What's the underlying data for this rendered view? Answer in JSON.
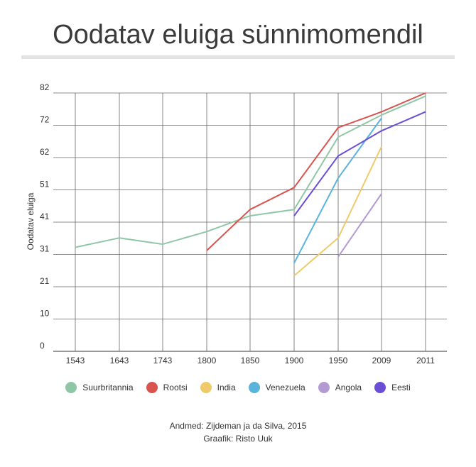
{
  "title": "Oodatav eluiga sünnimomendil",
  "credits": {
    "source": "Andmed: Zijdeman ja da Silva, 2015",
    "author": "Graafik: Risto Uuk"
  },
  "chart_data": {
    "type": "line",
    "title": "Oodatav eluiga sünnimomendil",
    "xlabel": "",
    "ylabel": "Oodatav eluiga",
    "categories": [
      "1543",
      "1643",
      "1743",
      "1800",
      "1850",
      "1900",
      "1950",
      "2009",
      "2011"
    ],
    "y_ticks": [
      "0",
      "10",
      "21",
      "31",
      "41",
      "51",
      "62",
      "72",
      "82"
    ],
    "ylim": [
      0,
      82
    ],
    "grid": true,
    "legend": "bottom",
    "series": [
      {
        "name": "Suurbritannia",
        "color": "#8fc7a6",
        "values": [
          33,
          36,
          34,
          38,
          43,
          45,
          68,
          75,
          81
        ]
      },
      {
        "name": "Rootsi",
        "color": "#d9534f",
        "values": [
          null,
          null,
          null,
          32,
          45,
          52,
          71,
          76,
          82
        ]
      },
      {
        "name": "India",
        "color": "#efca6b",
        "values": [
          null,
          null,
          null,
          null,
          null,
          24,
          36,
          65,
          null
        ]
      },
      {
        "name": "Venezuela",
        "color": "#5ab4dc",
        "values": [
          null,
          null,
          null,
          null,
          null,
          28,
          55,
          74,
          null
        ]
      },
      {
        "name": "Angola",
        "color": "#b39ad3",
        "values": [
          null,
          null,
          null,
          null,
          null,
          null,
          30,
          50,
          null
        ]
      },
      {
        "name": "Eesti",
        "color": "#6a4fd6",
        "values": [
          null,
          null,
          null,
          null,
          null,
          43,
          62,
          70,
          76
        ]
      }
    ]
  }
}
